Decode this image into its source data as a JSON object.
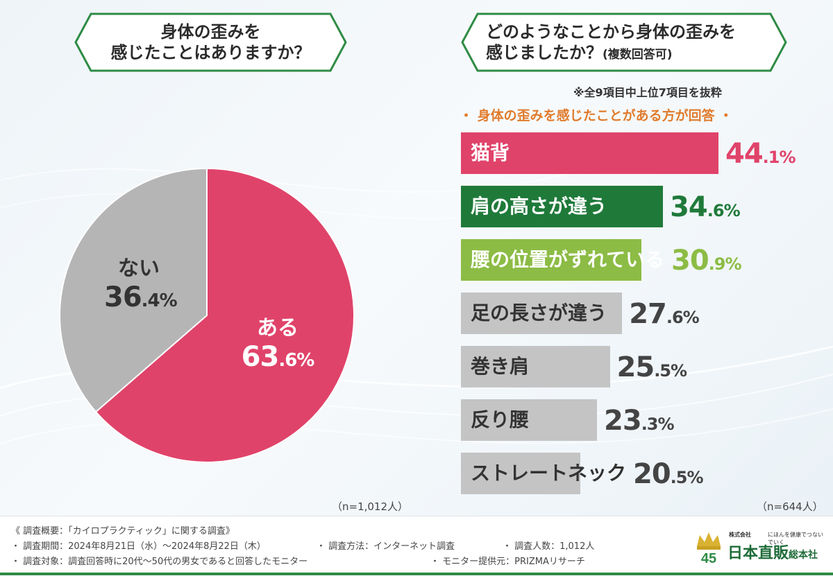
{
  "question1": {
    "line1": "身体の歪みを",
    "line2": "感じたことはありますか？"
  },
  "question2": {
    "line1": "どのようなことから身体の歪みを",
    "line2": "感じましたか？",
    "line2_small": "(複数回答可)"
  },
  "note_top": "※全9項目中上位7項目を抜粋",
  "note_respondents": "・ 身体の歪みを感じたことがある方が回答 ・",
  "chart_data": [
    {
      "type": "pie",
      "slices": [
        {
          "label": "ある",
          "value": 63.6,
          "int": "63",
          "dec": ".6%",
          "color": "#e0436a"
        },
        {
          "label": "ない",
          "value": 36.4,
          "int": "36",
          "dec": ".4%",
          "color": "#b5b5b5"
        }
      ],
      "n_label": "（n=1,012人）"
    },
    {
      "type": "bar",
      "orientation": "horizontal",
      "categories": [
        "猫背",
        "肩の高さが違う",
        "腰の位置がずれている",
        "足の長さが違う",
        "巻き肩",
        "反り腰",
        "ストレートネック"
      ],
      "values": [
        44.1,
        34.6,
        30.9,
        27.6,
        25.5,
        23.3,
        20.5
      ],
      "value_int": [
        "44",
        "34",
        "30",
        "27",
        "25",
        "23",
        "20"
      ],
      "value_dec": [
        ".1%",
        ".6%",
        ".9%",
        ".6%",
        ".5%",
        ".3%",
        ".5%"
      ],
      "bar_colors": [
        "#e0436a",
        "#1f7a3a",
        "#8cbc45",
        "#c4c4c4",
        "#c4c4c4",
        "#c4c4c4",
        "#c4c4c4"
      ],
      "label_colors": [
        "#ffffff",
        "#ffffff",
        "#ffffff",
        "#333333",
        "#333333",
        "#333333",
        "#333333"
      ],
      "value_colors": [
        "#e0436a",
        "#1f7a3a",
        "#8cbc45",
        "#444444",
        "#444444",
        "#444444",
        "#444444"
      ],
      "n_label": "（n=644人）"
    }
  ],
  "footer": {
    "line1": "《 調査概要：「カイロプラクティック」に関する調査》",
    "period": "・ 調査期間：2024年8月21日（水）～2024年8月22日（木）",
    "method": "・ 調査方法：インターネット調査",
    "count": "・ 調査人数：1,012人",
    "target": "・ 調査対象：調査回答時に20代～50代の男女であると回答したモニター",
    "provider": "・ モニター提供元：PRIZMAリサーチ"
  },
  "logo": {
    "anniv": "45",
    "small": "株式会社",
    "tagline": "にほんを健康でつないでいく",
    "name": "日本直販",
    "suffix": "総本社"
  }
}
